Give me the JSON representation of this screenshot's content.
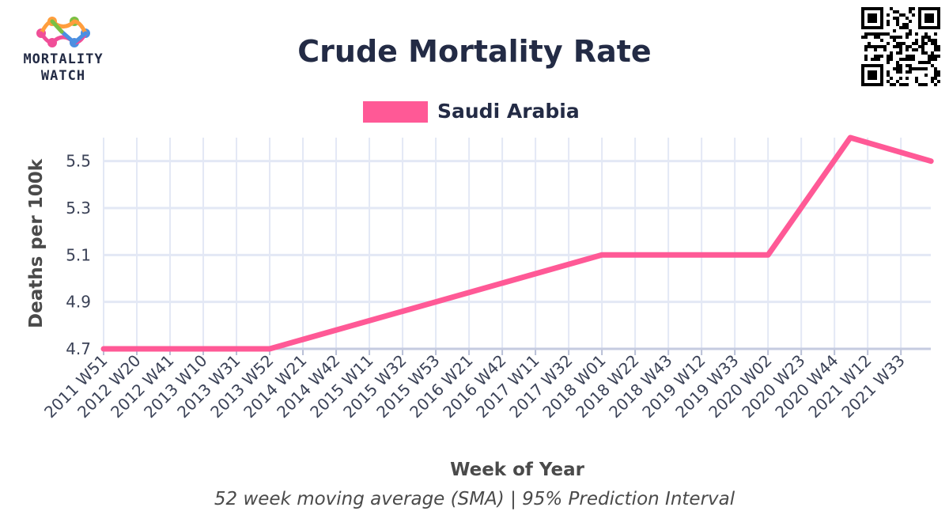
{
  "brand": {
    "line1": "MORTALITY",
    "line2": "WATCH",
    "colors": [
      "#f04e98",
      "#ff9e3d",
      "#7bc043",
      "#4a90e2"
    ]
  },
  "qr_icon": "qr-code-icon",
  "chart_data": {
    "type": "line",
    "title": "Crude Mortality Rate",
    "subtitle": "52 week moving average (SMA) | 95% Prediction Interval",
    "xlabel": "Week of Year",
    "ylabel": "Deaths per 100k",
    "ylim": [
      4.7,
      5.6
    ],
    "yticks": [
      "4.7",
      "4.9",
      "5.1",
      "5.3",
      "5.5"
    ],
    "x_tick_labels": [
      "2011 W51",
      "2012 W20",
      "2012 W41",
      "2013 W10",
      "2013 W31",
      "2013 W52",
      "2014 W21",
      "2014 W42",
      "2015 W11",
      "2015 W32",
      "2015 W53",
      "2016 W21",
      "2016 W42",
      "2017 W11",
      "2017 W32",
      "2018 W01",
      "2018 W22",
      "2018 W43",
      "2019 W12",
      "2019 W33",
      "2020 W02",
      "2020 W23",
      "2020 W44",
      "2021 W12",
      "2021 W33"
    ],
    "grid": true,
    "legend_position": "top-center",
    "series": [
      {
        "name": "Saudi Arabia",
        "color": "#ff5996",
        "points": [
          {
            "x": "2011 W51",
            "y": 4.7
          },
          {
            "x": "2013 W52",
            "y": 4.7
          },
          {
            "x": "2018 W01",
            "y": 5.1
          },
          {
            "x": "2020 W02",
            "y": 5.1
          },
          {
            "x": "2021 W01",
            "y": 5.6
          },
          {
            "x": "2021 W52",
            "y": 5.5
          }
        ]
      }
    ]
  }
}
